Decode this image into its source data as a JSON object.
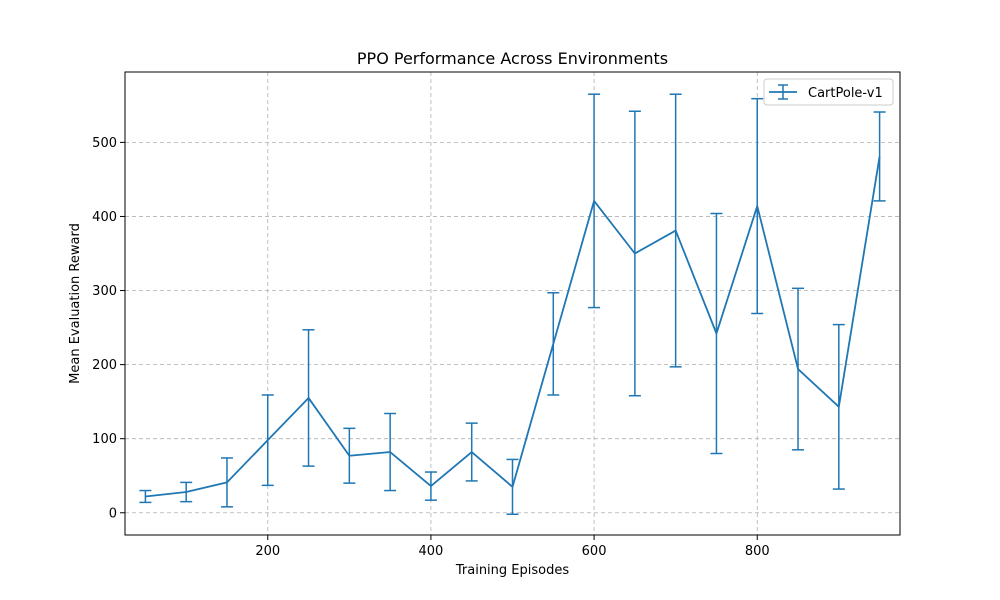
{
  "chart_data": {
    "type": "line",
    "title": "PPO Performance Across Environments",
    "xlabel": "Training Episodes",
    "ylabel": "Mean Evaluation Reward",
    "xlim": [
      25,
      975
    ],
    "ylim": [
      -30,
      595
    ],
    "xticks": [
      200,
      400,
      600,
      800
    ],
    "yticks": [
      0,
      100,
      200,
      300,
      400,
      500
    ],
    "grid": true,
    "legend_position": "top-right",
    "series": [
      {
        "name": "CartPole-v1",
        "color": "#1f77b4",
        "x": [
          50,
          100,
          150,
          200,
          250,
          300,
          350,
          400,
          450,
          500,
          550,
          600,
          650,
          700,
          750,
          800,
          850,
          900,
          950
        ],
        "y": [
          22,
          28,
          41,
          98,
          155,
          77,
          82,
          36,
          82,
          35,
          228,
          421,
          350,
          381,
          242,
          414,
          194,
          143,
          481
        ],
        "error": [
          8,
          13,
          33,
          61,
          92,
          37,
          52,
          19,
          39,
          37,
          69,
          144,
          192,
          184,
          162,
          145,
          109,
          111,
          60
        ]
      }
    ]
  }
}
